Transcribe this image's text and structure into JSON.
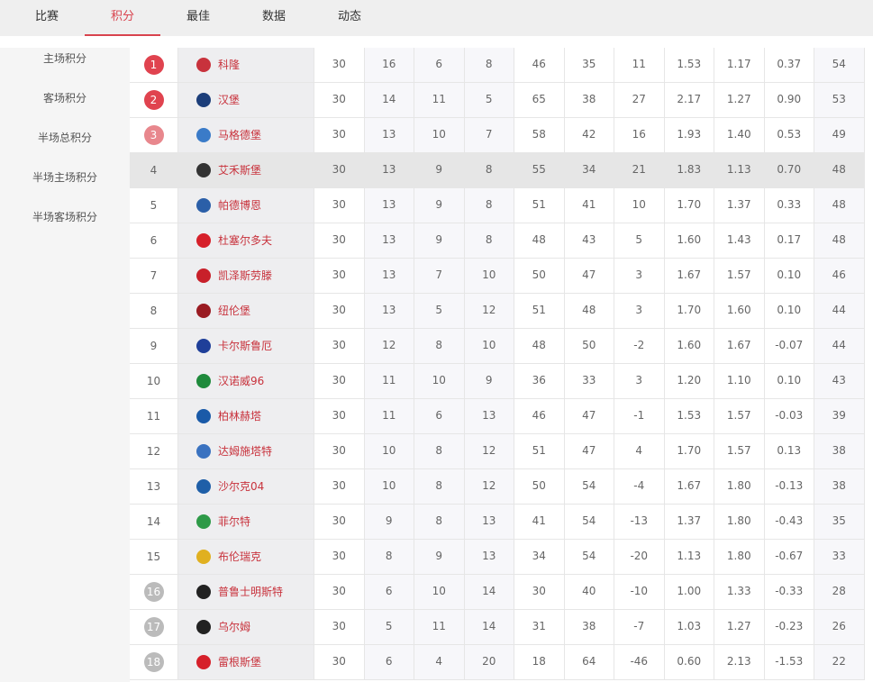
{
  "tabs": [
    "比赛",
    "积分",
    "最佳",
    "数据",
    "动态"
  ],
  "active_tab": 1,
  "sidebar": [
    "主场积分",
    "客场积分",
    "半场总积分",
    "半场主场积分",
    "半场客场积分"
  ],
  "colors": {
    "accent": "#d9434e",
    "promote": "#e0434f",
    "playoff": "#e8878d",
    "relegate": "#bbbbbb"
  },
  "rows": [
    {
      "rank": "1",
      "team": "科隆",
      "logo": "#c8323c",
      "v": [
        "30",
        "16",
        "6",
        "8",
        "46",
        "35",
        "11",
        "1.53",
        "1.17",
        "0.37",
        "54"
      ]
    },
    {
      "rank": "2",
      "team": "汉堡",
      "logo": "#1c3e7a",
      "v": [
        "30",
        "14",
        "11",
        "5",
        "65",
        "38",
        "27",
        "2.17",
        "1.27",
        "0.90",
        "53"
      ]
    },
    {
      "rank": "3",
      "team": "马格德堡",
      "logo": "#3a7bc8",
      "v": [
        "30",
        "13",
        "10",
        "7",
        "58",
        "42",
        "16",
        "1.93",
        "1.40",
        "0.53",
        "49"
      ]
    },
    {
      "rank": "4",
      "team": "艾禾斯堡",
      "logo": "#333333",
      "v": [
        "30",
        "13",
        "9",
        "8",
        "55",
        "34",
        "21",
        "1.83",
        "1.13",
        "0.70",
        "48"
      ]
    },
    {
      "rank": "5",
      "team": "帕德博恩",
      "logo": "#2b5fa8",
      "v": [
        "30",
        "13",
        "9",
        "8",
        "51",
        "41",
        "10",
        "1.70",
        "1.37",
        "0.33",
        "48"
      ]
    },
    {
      "rank": "6",
      "team": "杜塞尔多夫",
      "logo": "#d6202a",
      "v": [
        "30",
        "13",
        "9",
        "8",
        "48",
        "43",
        "5",
        "1.60",
        "1.43",
        "0.17",
        "48"
      ]
    },
    {
      "rank": "7",
      "team": "凯泽斯劳滕",
      "logo": "#c8202a",
      "v": [
        "30",
        "13",
        "7",
        "10",
        "50",
        "47",
        "3",
        "1.67",
        "1.57",
        "0.10",
        "46"
      ]
    },
    {
      "rank": "8",
      "team": "纽伦堡",
      "logo": "#9a1b22",
      "v": [
        "30",
        "13",
        "5",
        "12",
        "51",
        "48",
        "3",
        "1.70",
        "1.60",
        "0.10",
        "44"
      ]
    },
    {
      "rank": "9",
      "team": "卡尔斯鲁厄",
      "logo": "#1f3f99",
      "v": [
        "30",
        "12",
        "8",
        "10",
        "48",
        "50",
        "-2",
        "1.60",
        "1.67",
        "-0.07",
        "44"
      ]
    },
    {
      "rank": "10",
      "team": "汉诺威96",
      "logo": "#1f8a3c",
      "v": [
        "30",
        "11",
        "10",
        "9",
        "36",
        "33",
        "3",
        "1.20",
        "1.10",
        "0.10",
        "43"
      ]
    },
    {
      "rank": "11",
      "team": "柏林赫塔",
      "logo": "#1a5aa8",
      "v": [
        "30",
        "11",
        "6",
        "13",
        "46",
        "47",
        "-1",
        "1.53",
        "1.57",
        "-0.03",
        "39"
      ]
    },
    {
      "rank": "12",
      "team": "达姆施塔特",
      "logo": "#3a72c0",
      "v": [
        "30",
        "10",
        "8",
        "12",
        "51",
        "47",
        "4",
        "1.70",
        "1.57",
        "0.13",
        "38"
      ]
    },
    {
      "rank": "13",
      "team": "沙尔克04",
      "logo": "#1f5fa8",
      "v": [
        "30",
        "10",
        "8",
        "12",
        "50",
        "54",
        "-4",
        "1.67",
        "1.80",
        "-0.13",
        "38"
      ]
    },
    {
      "rank": "14",
      "team": "菲尔特",
      "logo": "#2e9a48",
      "v": [
        "30",
        "9",
        "8",
        "13",
        "41",
        "54",
        "-13",
        "1.37",
        "1.80",
        "-0.43",
        "35"
      ]
    },
    {
      "rank": "15",
      "team": "布伦瑞克",
      "logo": "#e0b020",
      "v": [
        "30",
        "8",
        "9",
        "13",
        "34",
        "54",
        "-20",
        "1.13",
        "1.80",
        "-0.67",
        "33"
      ]
    },
    {
      "rank": "16",
      "team": "普鲁士明斯特",
      "logo": "#222222",
      "v": [
        "30",
        "6",
        "10",
        "14",
        "30",
        "40",
        "-10",
        "1.00",
        "1.33",
        "-0.33",
        "28"
      ]
    },
    {
      "rank": "17",
      "team": "乌尔姆",
      "logo": "#222222",
      "v": [
        "30",
        "5",
        "11",
        "14",
        "31",
        "38",
        "-7",
        "1.03",
        "1.27",
        "-0.23",
        "26"
      ]
    },
    {
      "rank": "18",
      "team": "雷根斯堡",
      "logo": "#d6202a",
      "v": [
        "30",
        "6",
        "4",
        "20",
        "18",
        "64",
        "-46",
        "0.60",
        "2.13",
        "-1.53",
        "22"
      ]
    }
  ]
}
